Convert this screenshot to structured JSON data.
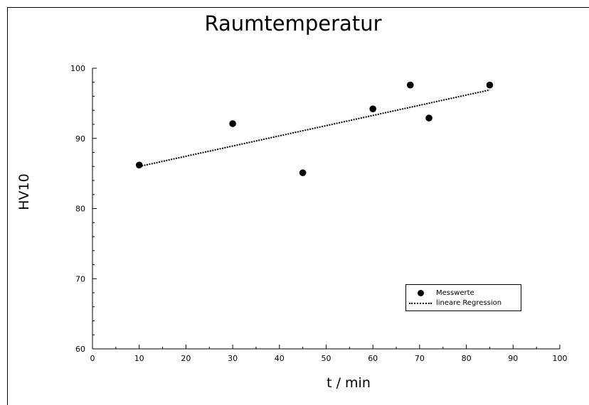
{
  "chart_data": {
    "type": "scatter",
    "title": "Raumtemperatur",
    "xlabel": "t / min",
    "ylabel": "HV10",
    "xlim": [
      0,
      100
    ],
    "ylim": [
      60,
      100
    ],
    "xticks": [
      0,
      10,
      20,
      30,
      40,
      50,
      60,
      70,
      80,
      90,
      100
    ],
    "yticks": [
      60,
      70,
      80,
      90,
      100
    ],
    "legend_position": "bottom-right",
    "grid": false,
    "series": [
      {
        "name": "Messwerte",
        "kind": "points",
        "marker": "filled-circle",
        "x": [
          10,
          30,
          45,
          60,
          68,
          72,
          85
        ],
        "y": [
          86.2,
          92.1,
          85.1,
          94.2,
          97.6,
          92.9,
          97.6
        ]
      },
      {
        "name": "lineare Regression",
        "kind": "line",
        "style": "dotted",
        "x": [
          10,
          85
        ],
        "y": [
          86.0,
          96.9
        ]
      }
    ],
    "colors": {
      "points": "#000000",
      "line": "#000000",
      "axes": "#000000"
    }
  }
}
